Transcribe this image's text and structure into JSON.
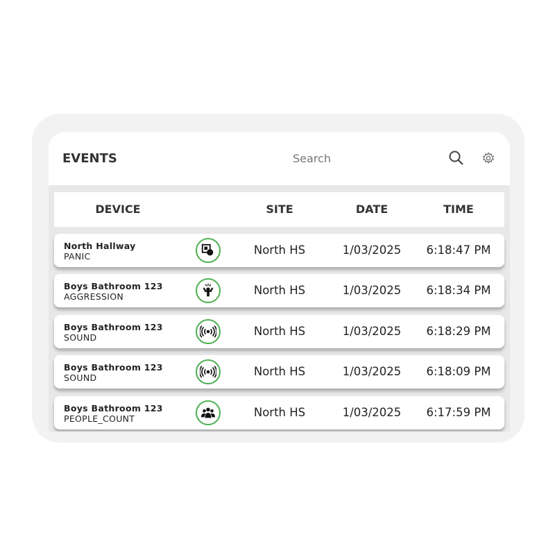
{
  "header": {
    "title": "EVENTS",
    "search_placeholder": "Search",
    "icons": [
      "search-icon",
      "gear-icon"
    ]
  },
  "columns": {
    "device": "DEVICE",
    "site": "SITE",
    "date": "DATE",
    "time": "TIME"
  },
  "accent_color": "#4caf50",
  "events": [
    {
      "device": "North Hallway",
      "type": "PANIC",
      "icon": "panic-button-icon",
      "site": "North HS",
      "date": "1/03/2025",
      "time": "6:18:47 PM"
    },
    {
      "device": "Boys Bathroom 123",
      "type": "AGGRESSION",
      "icon": "aggression-icon",
      "site": "North HS",
      "date": "1/03/2025",
      "time": "6:18:34 PM"
    },
    {
      "device": "Boys Bathroom 123",
      "type": "SOUND",
      "icon": "sound-waves-icon",
      "site": "North HS",
      "date": "1/03/2025",
      "time": "6:18:29 PM"
    },
    {
      "device": "Boys Bathroom 123",
      "type": "SOUND",
      "icon": "sound-waves-icon",
      "site": "North HS",
      "date": "1/03/2025",
      "time": "6:18:09 PM"
    },
    {
      "device": "Boys Bathroom 123",
      "type": "PEOPLE_COUNT",
      "icon": "people-group-icon",
      "site": "North HS",
      "date": "1/03/2025",
      "time": "6:17:59 PM"
    }
  ]
}
